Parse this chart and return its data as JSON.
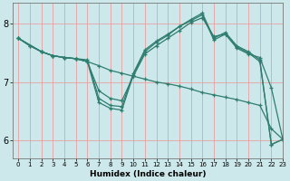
{
  "xlabel": "Humidex (Indice chaleur)",
  "bg_color": "#cce8ea",
  "grid_color": "#e8a0a0",
  "line_color": "#2e7d6e",
  "xlim": [
    -0.5,
    23
  ],
  "ylim": [
    5.7,
    8.35
  ],
  "yticks": [
    6,
    7,
    8
  ],
  "xticks": [
    0,
    1,
    2,
    3,
    4,
    5,
    6,
    7,
    8,
    9,
    10,
    11,
    12,
    13,
    14,
    15,
    16,
    17,
    18,
    19,
    20,
    21,
    22,
    23
  ],
  "series": [
    {
      "x": [
        0,
        1,
        2,
        3,
        4,
        5,
        6,
        7,
        8,
        9,
        10,
        11,
        12,
        13,
        14,
        15,
        16,
        17,
        18,
        19,
        20,
        21,
        22,
        23
      ],
      "y": [
        7.75,
        7.62,
        7.52,
        7.45,
        7.42,
        7.4,
        7.35,
        7.28,
        7.2,
        7.15,
        7.1,
        7.05,
        7.0,
        6.97,
        6.93,
        6.88,
        6.82,
        6.78,
        6.74,
        6.7,
        6.65,
        6.6,
        6.2,
        6.02
      ]
    },
    {
      "x": [
        0,
        1,
        2,
        3,
        4,
        5,
        6,
        7,
        8,
        9,
        10,
        11,
        12,
        13,
        14,
        15,
        16,
        17,
        18,
        19,
        20,
        21,
        22,
        23
      ],
      "y": [
        7.75,
        7.62,
        7.52,
        7.45,
        7.42,
        7.4,
        7.35,
        6.85,
        6.72,
        6.68,
        7.1,
        7.48,
        7.62,
        7.75,
        7.88,
        8.02,
        8.1,
        7.78,
        7.82,
        7.58,
        7.48,
        7.42,
        6.9,
        6.02
      ]
    },
    {
      "x": [
        0,
        2,
        3,
        4,
        5,
        6,
        7,
        8,
        9,
        10,
        11,
        12,
        13,
        14,
        15,
        16,
        17,
        18,
        19,
        20,
        21,
        22,
        23
      ],
      "y": [
        7.75,
        7.52,
        7.45,
        7.42,
        7.4,
        7.35,
        6.65,
        6.55,
        6.52,
        7.12,
        7.52,
        7.68,
        7.8,
        7.95,
        8.05,
        8.15,
        7.72,
        7.82,
        7.6,
        7.5,
        7.35,
        5.93,
        6.02
      ]
    },
    {
      "x": [
        0,
        2,
        3,
        4,
        5,
        6,
        7,
        8,
        9,
        10,
        11,
        12,
        13,
        14,
        15,
        16,
        17,
        18,
        19,
        20,
        21,
        22,
        23
      ],
      "y": [
        7.75,
        7.52,
        7.45,
        7.42,
        7.4,
        7.38,
        6.72,
        6.6,
        6.58,
        7.15,
        7.55,
        7.7,
        7.82,
        7.95,
        8.07,
        8.18,
        7.75,
        7.85,
        7.62,
        7.52,
        7.38,
        5.93,
        6.02
      ]
    }
  ]
}
